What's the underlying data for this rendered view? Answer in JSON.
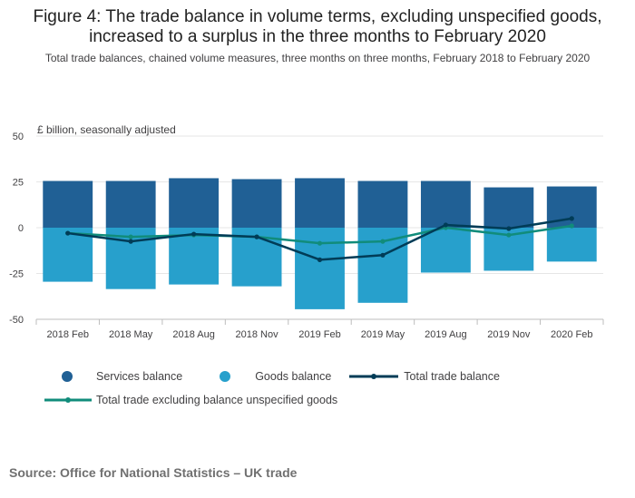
{
  "title_line1": "Figure 4: The trade balance in volume terms, excluding unspecified goods,",
  "title_line2": "increased to a surplus in the three months to February 2020",
  "subtitle": "Total trade balances, chained volume measures, three months on three months, February 2018 to February 2020",
  "source": "Source: Office for National Statistics – UK trade",
  "colors": {
    "services": "#206095",
    "goods": "#27a0cc",
    "total": "#003c57",
    "total_excl": "#118c7b",
    "grid": "#e6e6e6",
    "axis": "#bdbdbd"
  },
  "chart_data": {
    "type": "bar",
    "title": "Figure 4: The trade balance in volume terms, excluding unspecified goods, increased to a surplus in the three months to February 2020",
    "ylabel": "£ billion, seasonally adjusted",
    "xlabel": "",
    "ylim": [
      -50,
      50
    ],
    "yticks": [
      50,
      25,
      0,
      -25,
      -50
    ],
    "categories": [
      "2018 Feb",
      "2018 May",
      "2018 Aug",
      "2018 Nov",
      "2019 Feb",
      "2019 May",
      "2019 Aug",
      "2019 Nov",
      "2020 Feb"
    ],
    "series": [
      {
        "name": "Services balance",
        "type": "bar",
        "values": [
          25.5,
          25.5,
          27.0,
          26.5,
          27.0,
          25.5,
          25.5,
          22.0,
          22.5
        ]
      },
      {
        "name": "Goods balance",
        "type": "bar",
        "values": [
          -29.5,
          -33.5,
          -31.0,
          -32.0,
          -44.5,
          -41.0,
          -24.5,
          -23.5,
          -18.5
        ]
      },
      {
        "name": "Total trade balance",
        "type": "line",
        "values": [
          -3.0,
          -7.5,
          -3.5,
          -5.0,
          -17.5,
          -15.0,
          1.5,
          -0.5,
          5.0
        ]
      },
      {
        "name": "Total trade excluding balance unspecified goods",
        "type": "line",
        "values": [
          -3.0,
          -5.0,
          -4.0,
          -5.0,
          -8.5,
          -7.5,
          0.0,
          -4.0,
          1.0
        ]
      }
    ]
  }
}
